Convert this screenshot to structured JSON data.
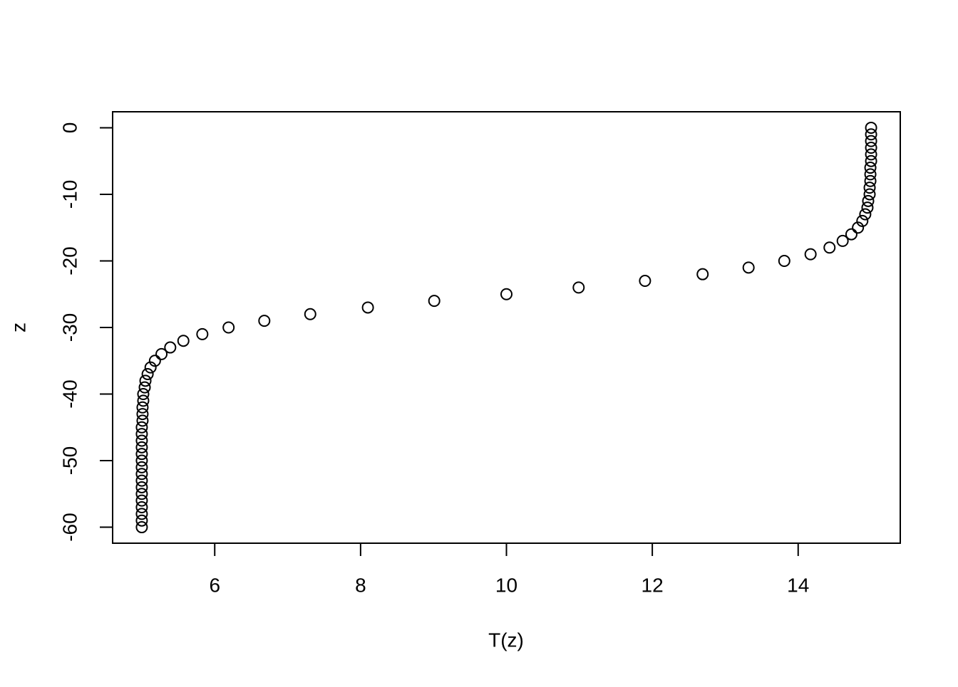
{
  "chart_data": {
    "type": "scatter",
    "xlabel": "T(z)",
    "ylabel": "z",
    "x": [
      15.0,
      15.0,
      15.0,
      15.0,
      15.0,
      15.0,
      14.99,
      14.99,
      14.99,
      14.98,
      14.98,
      14.96,
      14.95,
      14.92,
      14.88,
      14.82,
      14.73,
      14.61,
      14.43,
      14.17,
      13.81,
      13.32,
      12.69,
      11.9,
      10.99,
      10.0,
      9.01,
      8.1,
      7.31,
      6.68,
      6.19,
      5.83,
      5.57,
      5.39,
      5.27,
      5.18,
      5.12,
      5.08,
      5.05,
      5.04,
      5.02,
      5.02,
      5.01,
      5.01,
      5.01,
      5.0,
      5.0,
      5.0,
      5.0,
      5.0,
      5.0,
      5.0,
      5.0,
      5.0,
      5.0,
      5.0,
      5.0,
      5.0,
      5.0,
      5.0,
      5.0
    ],
    "y": [
      0,
      -1,
      -2,
      -3,
      -4,
      -5,
      -6,
      -7,
      -8,
      -9,
      -10,
      -11,
      -12,
      -13,
      -14,
      -15,
      -16,
      -17,
      -18,
      -19,
      -20,
      -21,
      -22,
      -23,
      -24,
      -25,
      -26,
      -27,
      -28,
      -29,
      -30,
      -31,
      -32,
      -33,
      -34,
      -35,
      -36,
      -37,
      -38,
      -39,
      -40,
      -41,
      -42,
      -43,
      -44,
      -45,
      -46,
      -47,
      -48,
      -49,
      -50,
      -51,
      -52,
      -53,
      -54,
      -55,
      -56,
      -57,
      -58,
      -59,
      -60
    ],
    "color": "#000000",
    "xlim": [
      4.6,
      15.4
    ],
    "ylim": [
      -62.4,
      2.4
    ],
    "xticks": [
      6,
      8,
      10,
      12,
      14
    ],
    "yticks": [
      0,
      -10,
      -20,
      -30,
      -40,
      -50,
      -60
    ]
  }
}
